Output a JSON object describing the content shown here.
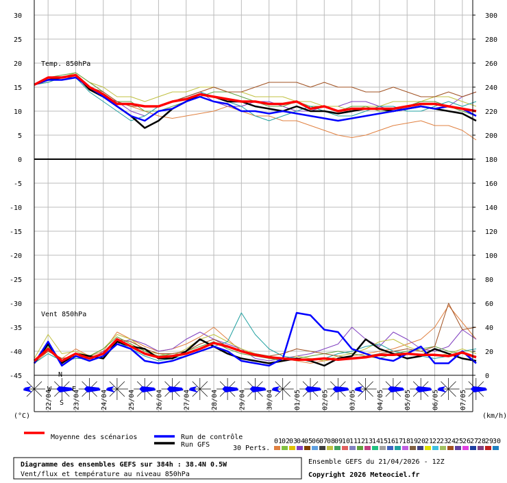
{
  "chart_data": {
    "type": "line",
    "title": "Diagramme des ensembles GEFS sur 384h : 38.4N 0.5W",
    "subtitle": "Vent/flux et température au niveau 850hPa",
    "run_label": "Ensemble GEFS du 21/04/2026 - 12Z",
    "copyright": "Copyright 2026 Meteociel.fr",
    "y_label": "(°C)",
    "y2_label": "(km/h)",
    "panel_labels": [
      "Temp. 850hPa",
      "Vent 850hPa"
    ],
    "members_label": "30 Perts.",
    "compass": [
      "N",
      "W",
      "E",
      "S"
    ],
    "categories": [
      null,
      "22/04",
      null,
      "23/04",
      null,
      "24/04",
      null,
      "25/04",
      null,
      "26/04",
      null,
      "27/04",
      null,
      "28/04",
      null,
      "29/04",
      null,
      "30/04",
      null,
      "01/05",
      null,
      "02/05",
      null,
      "03/05",
      null,
      "04/05",
      null,
      "05/05",
      null,
      "06/05",
      null,
      "07/05",
      null
    ],
    "ylim": [
      -45,
      30
    ],
    "yticks": [
      30,
      25,
      20,
      15,
      10,
      5,
      0,
      -5,
      -10,
      -15,
      -20,
      -25,
      -30,
      -35,
      -40,
      -45
    ],
    "y2lim": [
      0,
      300
    ],
    "y2ticks": [
      300,
      280,
      260,
      240,
      220,
      200,
      180,
      160,
      140,
      120,
      100,
      80,
      60,
      40,
      20,
      0
    ],
    "grid": true,
    "members": [
      {
        "name": "01",
        "color": "#e08040",
        "values": [
          15.5,
          16,
          17,
          18,
          16,
          14,
          12,
          11,
          10,
          9,
          8.5,
          9,
          9.5,
          10,
          11,
          10,
          9,
          9,
          8,
          8,
          7,
          6,
          5,
          4.5,
          5,
          6,
          7,
          7.5,
          8,
          7,
          7,
          6,
          4
        ],
        "wind": [
          10,
          20,
          14,
          22,
          16,
          20,
          36,
          30,
          24,
          20,
          22,
          26,
          32,
          40,
          30,
          20,
          18,
          16,
          14,
          12,
          10,
          12,
          14,
          16,
          18,
          20,
          22,
          26,
          30,
          40,
          58,
          44,
          30
        ]
      },
      {
        "name": "02",
        "color": "#80c040"
      },
      {
        "name": "03",
        "color": "#e0c000"
      },
      {
        "name": "04",
        "color": "#8040c0",
        "values": [
          15.5,
          17,
          16.5,
          17,
          15,
          13,
          12,
          10,
          9,
          11,
          12,
          13,
          14,
          12,
          11,
          11,
          12,
          12,
          11,
          10,
          10,
          11,
          11,
          12,
          12,
          11,
          10,
          11,
          12,
          12,
          11,
          13,
          14
        ],
        "wind": [
          12,
          22,
          10,
          16,
          12,
          20,
          26,
          30,
          26,
          20,
          22,
          30,
          36,
          30,
          26,
          22,
          14,
          12,
          14,
          16,
          18,
          22,
          26,
          40,
          30,
          24,
          36,
          30,
          22,
          20,
          24,
          38,
          30
        ]
      },
      {
        "name": "05",
        "color": "#804000"
      },
      {
        "name": "06",
        "color": "#60a0e0"
      },
      {
        "name": "07",
        "color": "#404040"
      },
      {
        "name": "08",
        "color": "#c0c040",
        "values": [
          15.5,
          17,
          17,
          18,
          16,
          15,
          13,
          13,
          12,
          13,
          14,
          14,
          15,
          15,
          14,
          14,
          13,
          13,
          13,
          12,
          12,
          11,
          11,
          10,
          11,
          11,
          12,
          12,
          12,
          13,
          13,
          12,
          11
        ],
        "wind": [
          14,
          34,
          18,
          20,
          16,
          22,
          34,
          30,
          20,
          18,
          16,
          22,
          30,
          34,
          28,
          22,
          18,
          14,
          12,
          16,
          14,
          12,
          16,
          18,
          22,
          28,
          30,
          24,
          20,
          16,
          18,
          22,
          18
        ]
      },
      {
        "name": "09",
        "color": "#40a060"
      },
      {
        "name": "10",
        "color": "#e06060"
      },
      {
        "name": "11",
        "color": "#8080c0"
      },
      {
        "name": "12",
        "color": "#60a040",
        "values": [
          15.5,
          17,
          17.5,
          18,
          16,
          14,
          12,
          12,
          10,
          10,
          11,
          12,
          13,
          14,
          14,
          13,
          12,
          11,
          11,
          12,
          11,
          11,
          10,
          11,
          11,
          10,
          10,
          11,
          12,
          12,
          11,
          10,
          9
        ],
        "wind": [
          12,
          24,
          12,
          18,
          16,
          22,
          32,
          26,
          20,
          16,
          18,
          20,
          24,
          28,
          22,
          18,
          16,
          14,
          12,
          14,
          16,
          18,
          20,
          18,
          16,
          14,
          18,
          20,
          22,
          24,
          20,
          18,
          16
        ]
      },
      {
        "name": "13",
        "color": "#c04080"
      },
      {
        "name": "14",
        "color": "#20c080"
      },
      {
        "name": "15",
        "color": "#a0a0a0"
      },
      {
        "name": "16",
        "color": "#4060c0"
      },
      {
        "name": "17",
        "color": "#20a0a0",
        "values": [
          15.5,
          16,
          17,
          17,
          14,
          12,
          10,
          8,
          9,
          11,
          12,
          13,
          14,
          13,
          12,
          11,
          9,
          8,
          9,
          10,
          11,
          10,
          9,
          9,
          10,
          11,
          11,
          10,
          10,
          11,
          12,
          11,
          12
        ],
        "wind": [
          10,
          18,
          12,
          14,
          14,
          18,
          28,
          22,
          16,
          12,
          14,
          16,
          20,
          24,
          28,
          52,
          34,
          22,
          16,
          14,
          12,
          14,
          18,
          20,
          24,
          26,
          20,
          18,
          16,
          14,
          16,
          20,
          22
        ]
      },
      {
        "name": "18",
        "color": "#c060e0"
      },
      {
        "name": "19",
        "color": "#806040"
      },
      {
        "name": "20",
        "color": "#404080"
      },
      {
        "name": "21",
        "color": "#e0e000"
      },
      {
        "name": "22",
        "color": "#40c0e0"
      },
      {
        "name": "23",
        "color": "#a0c060"
      },
      {
        "name": "24",
        "color": "#a05020",
        "values": [
          15.5,
          17,
          17,
          17.5,
          15,
          14,
          12,
          11,
          11,
          11,
          12,
          13,
          14,
          15,
          14,
          14,
          15,
          16,
          16,
          16,
          15,
          16,
          15,
          15,
          14,
          14,
          15,
          14,
          13,
          13,
          14,
          13,
          14
        ],
        "wind": [
          12,
          20,
          14,
          16,
          14,
          18,
          30,
          28,
          22,
          18,
          18,
          20,
          26,
          30,
          24,
          20,
          18,
          16,
          18,
          22,
          20,
          18,
          16,
          14,
          16,
          18,
          20,
          22,
          20,
          24,
          60,
          38,
          40
        ]
      },
      {
        "name": "25",
        "color": "#6040a0"
      },
      {
        "name": "26",
        "color": "#e040e0"
      },
      {
        "name": "27",
        "color": "#2040a0"
      },
      {
        "name": "28",
        "color": "#804080"
      },
      {
        "name": "29",
        "color": "#c02020"
      },
      {
        "name": "30",
        "color": "#2080c0"
      }
    ],
    "series": [
      {
        "name": "Run GFS",
        "color": "#000000",
        "values": [
          15.5,
          16.5,
          17,
          17.5,
          14.5,
          13,
          11,
          9,
          6.5,
          8,
          10.5,
          12,
          13.5,
          13,
          12,
          12,
          11,
          10.5,
          10,
          11,
          10,
          10,
          9.5,
          10,
          10.5,
          10.5,
          10,
          10.5,
          11,
          10.5,
          10,
          9.5,
          8
        ],
        "wind": [
          10,
          26,
          10,
          18,
          16,
          14,
          28,
          24,
          22,
          14,
          14,
          20,
          30,
          24,
          18,
          14,
          12,
          10,
          12,
          14,
          12,
          8,
          14,
          16,
          30,
          22,
          18,
          14,
          16,
          22,
          18,
          14,
          12
        ]
      },
      {
        "name": "Run de contrôle",
        "color": "#0000ff",
        "values": [
          15.5,
          16.5,
          16.5,
          17,
          15,
          13,
          11,
          9,
          8,
          10,
          10.5,
          12,
          13,
          12,
          11.5,
          10,
          10,
          9.5,
          10,
          9.5,
          9,
          8.5,
          8,
          8.5,
          9,
          9.5,
          10,
          10.5,
          11,
          10.5,
          11,
          10.5,
          9
        ],
        "wind": [
          10,
          28,
          8,
          16,
          12,
          16,
          26,
          22,
          12,
          10,
          12,
          16,
          20,
          24,
          20,
          12,
          10,
          8,
          14,
          52,
          50,
          38,
          36,
          22,
          18,
          14,
          12,
          18,
          24,
          10,
          10,
          20,
          10
        ]
      },
      {
        "name": "Moyenne des scénarios",
        "color": "#ff0000",
        "values": [
          15.5,
          17,
          17,
          17.5,
          15,
          13.5,
          11.5,
          11.5,
          11,
          11,
          12,
          12.5,
          13.5,
          13,
          12.5,
          12,
          12,
          11.5,
          11.5,
          12,
          10.5,
          11,
          10,
          10.5,
          10.5,
          10.5,
          10.5,
          11,
          11.5,
          11.5,
          11,
          10.5,
          10
        ],
        "wind": [
          12,
          22,
          12,
          18,
          14,
          18,
          30,
          24,
          18,
          15,
          16,
          18,
          22,
          27,
          24,
          20,
          17,
          15,
          14,
          13,
          13,
          14,
          13,
          14,
          15,
          17,
          17,
          18,
          17,
          17,
          16,
          19,
          15
        ]
      }
    ]
  }
}
